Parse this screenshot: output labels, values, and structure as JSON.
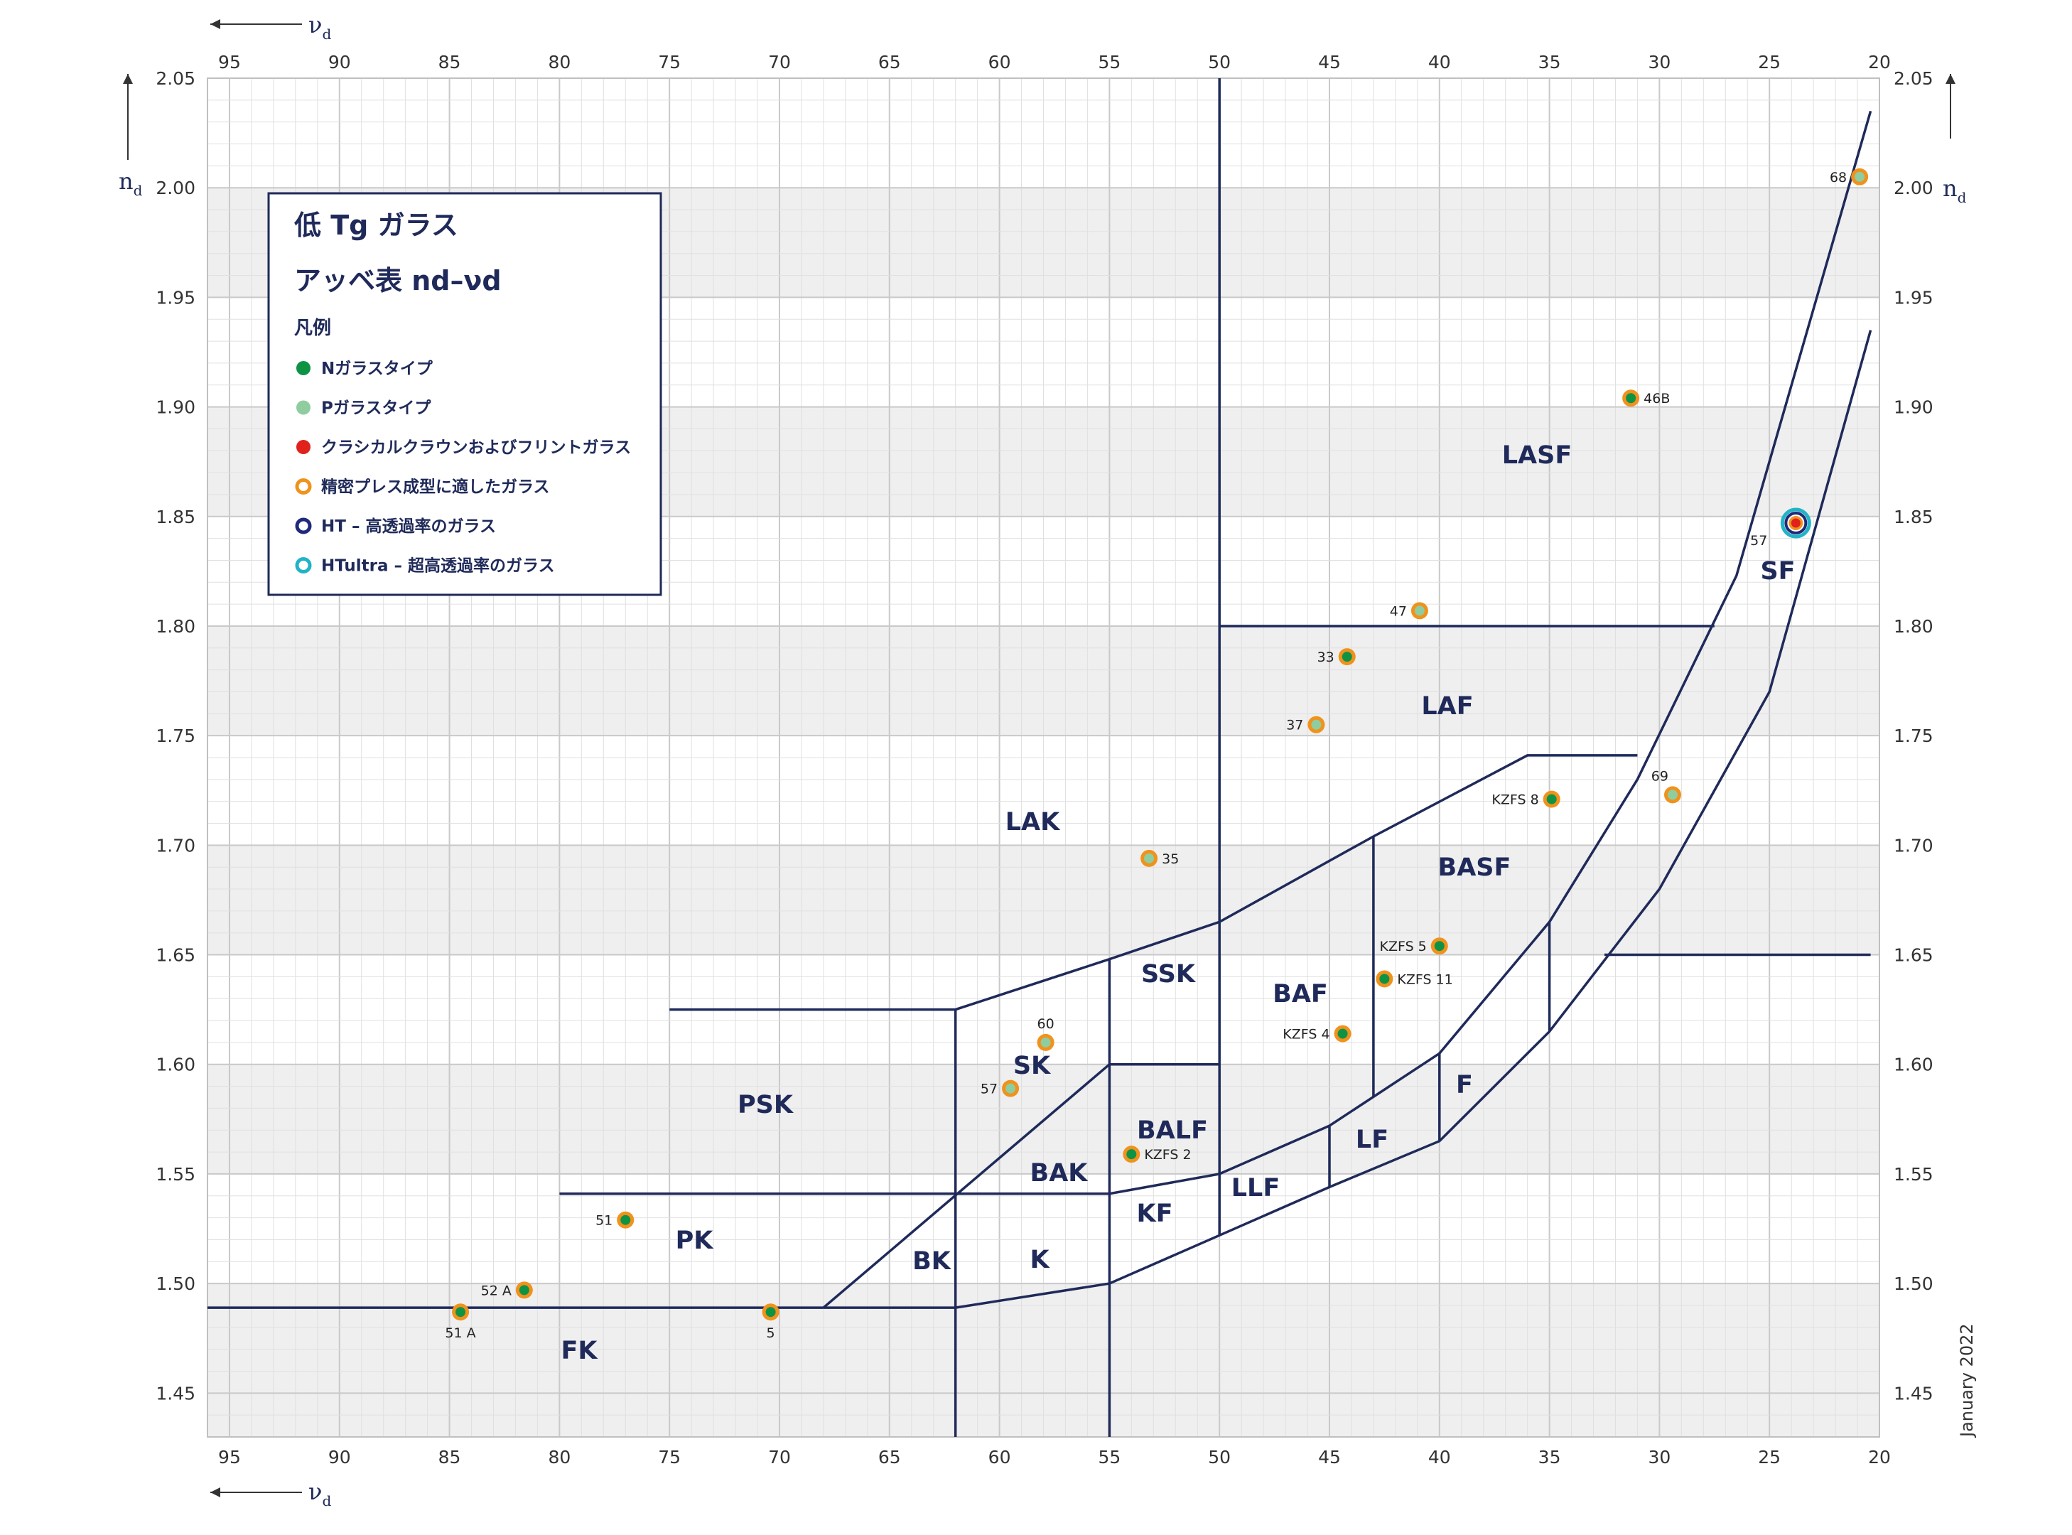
{
  "chart_data": {
    "type": "scatter",
    "title": "低 Tg ガラス",
    "title_sub": "g",
    "subtitle": "アッベ表 nd–νd",
    "xlabel": "νd",
    "ylabel": "nd",
    "xlim": [
      96,
      20
    ],
    "ylim": [
      1.43,
      2.05
    ],
    "x_ticks": [
      95,
      90,
      85,
      80,
      75,
      70,
      65,
      60,
      55,
      50,
      45,
      40,
      35,
      30,
      25,
      20
    ],
    "y_ticks": [
      1.45,
      1.5,
      1.55,
      1.6,
      1.65,
      1.7,
      1.75,
      1.8,
      1.85,
      1.9,
      1.95,
      2.0,
      2.05
    ],
    "grid": true,
    "legend_position": "top-left",
    "legend": {
      "heading": "凡例",
      "items": [
        {
          "label": "Nガラスタイプ",
          "marker": "filled",
          "color": "#0e9345"
        },
        {
          "label": "Pガラスタイプ",
          "marker": "filled",
          "color": "#8fcda0"
        },
        {
          "label": "クラシカルクラウンおよびフリントガラス",
          "marker": "filled",
          "color": "#e0211c"
        },
        {
          "label": "精密プレス成型に適したガラス",
          "marker": "ring",
          "color": "#f0921c"
        },
        {
          "label": "HT – 高透過率のガラス",
          "marker": "ring",
          "color": "#1f2a7a"
        },
        {
          "label": "HTultra – 超高透過率のガラス",
          "marker": "ring",
          "color": "#22b3c7"
        }
      ]
    },
    "series": [
      {
        "name": "Nガラスタイプ",
        "color": "#0e9345",
        "points": [
          {
            "x": 84.5,
            "y": 1.487,
            "label": "51 A"
          },
          {
            "x": 81.6,
            "y": 1.497,
            "label": "52 A"
          },
          {
            "x": 77.0,
            "y": 1.529,
            "label": "51"
          },
          {
            "x": 70.4,
            "y": 1.487,
            "label": "5"
          },
          {
            "x": 54.0,
            "y": 1.559,
            "label": "KZFS 2"
          },
          {
            "x": 44.4,
            "y": 1.614,
            "label": "KZFS 4"
          },
          {
            "x": 42.5,
            "y": 1.639,
            "label": "KZFS 11"
          },
          {
            "x": 40.0,
            "y": 1.654,
            "label": "KZFS 5"
          },
          {
            "x": 44.2,
            "y": 1.786,
            "label": "33"
          },
          {
            "x": 34.9,
            "y": 1.721,
            "label": "KZFS 8"
          },
          {
            "x": 31.3,
            "y": 1.904,
            "label": "46B"
          }
        ]
      },
      {
        "name": "Pガラスタイプ",
        "color": "#8fcda0",
        "points": [
          {
            "x": 59.5,
            "y": 1.589,
            "label": "57"
          },
          {
            "x": 57.9,
            "y": 1.61,
            "label": "60"
          },
          {
            "x": 53.2,
            "y": 1.694,
            "label": "35"
          },
          {
            "x": 45.6,
            "y": 1.755,
            "label": "37"
          },
          {
            "x": 40.9,
            "y": 1.807,
            "label": "47"
          },
          {
            "x": 29.4,
            "y": 1.723,
            "label": "69"
          },
          {
            "x": 20.9,
            "y": 2.005,
            "label": "68"
          }
        ]
      },
      {
        "name": "クラシカルクラウンおよびフリントガラス",
        "color": "#e0211c",
        "points": [
          {
            "x": 23.8,
            "y": 1.847,
            "label": "57",
            "ht": true,
            "htultra": true
          }
        ]
      }
    ],
    "regions": [
      "LASF",
      "SF",
      "LAF",
      "BASF",
      "LAK",
      "SSK",
      "BAF",
      "SK",
      "F",
      "LF",
      "PSK",
      "BALF",
      "BAK",
      "LLF",
      "KF",
      "PK",
      "BK",
      "K",
      "FK"
    ],
    "annotation": "January 2022"
  },
  "colors": {
    "navy": "#1f2a5a",
    "band": "#efefef",
    "grid": "#d4d4d4",
    "point_ring": "#f0921c"
  }
}
